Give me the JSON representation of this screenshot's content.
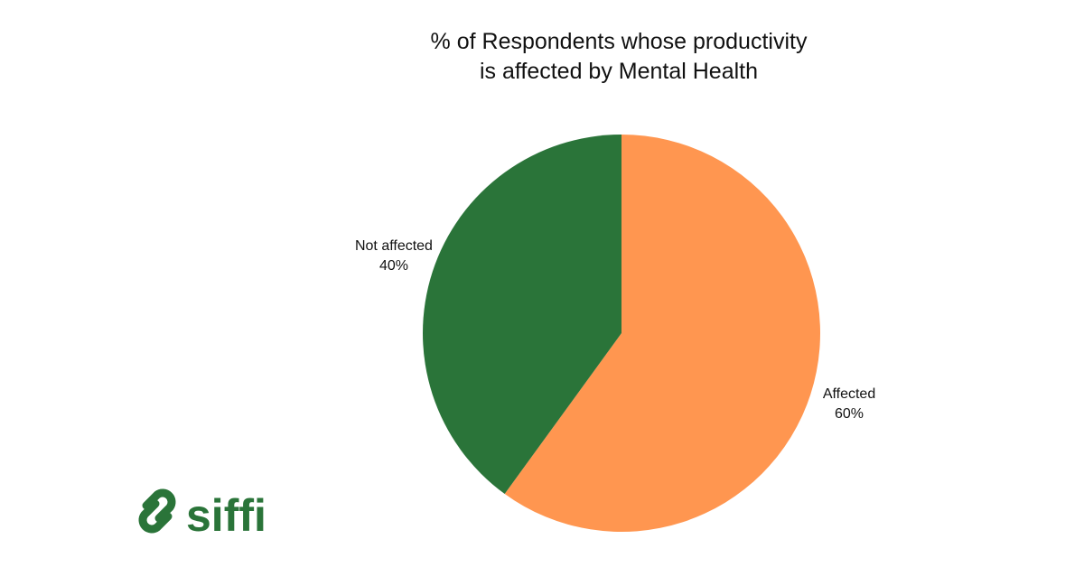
{
  "chart_data": {
    "type": "pie",
    "title": "% of Respondents whose productivity is affected by Mental Health",
    "categories": [
      "Affected",
      "Not affected"
    ],
    "values": [
      60,
      40
    ],
    "value_labels": [
      "60%",
      "40%"
    ],
    "colors": [
      "#ff9650",
      "#2a7439"
    ]
  },
  "logo": "siffi"
}
